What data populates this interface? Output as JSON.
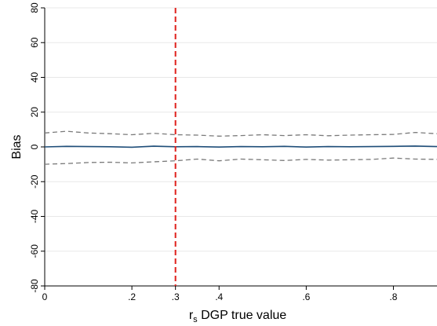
{
  "chart_data": {
    "type": "line",
    "xlabel_main": "r",
    "xlabel_sub": "s",
    "xlabel_rest": " DGP true value",
    "ylabel": "Bias",
    "xlim": [
      0,
      0.9
    ],
    "ylim": [
      -80,
      80
    ],
    "x_ticks": [
      {
        "value": 0,
        "label": "0"
      },
      {
        "value": 0.2,
        "label": ".2"
      },
      {
        "value": 0.3,
        "label": ".3"
      },
      {
        "value": 0.4,
        "label": ".4"
      },
      {
        "value": 0.6,
        "label": ".6"
      },
      {
        "value": 0.8,
        "label": ".8"
      }
    ],
    "y_ticks": [
      {
        "value": 80,
        "label": "80"
      },
      {
        "value": 60,
        "label": "60"
      },
      {
        "value": 40,
        "label": "40"
      },
      {
        "value": 20,
        "label": "20"
      },
      {
        "value": 0,
        "label": "0"
      },
      {
        "value": -20,
        "label": "-20"
      },
      {
        "value": -40,
        "label": "-40"
      },
      {
        "value": -60,
        "label": "-60"
      },
      {
        "value": -80,
        "label": "-80"
      }
    ],
    "grid": true,
    "reference_line": {
      "x": 0.3,
      "color": "#e0201b",
      "style": "dashed"
    },
    "x": [
      0,
      0.05,
      0.1,
      0.15,
      0.2,
      0.25,
      0.3,
      0.35,
      0.4,
      0.45,
      0.5,
      0.55,
      0.6,
      0.65,
      0.7,
      0.75,
      0.8,
      0.85,
      0.9
    ],
    "series": [
      {
        "role": "mean",
        "color": "#1f4e79",
        "style": "solid",
        "values": [
          0,
          0.3,
          0.2,
          0.1,
          -0.2,
          0.4,
          0.1,
          0.2,
          -0.1,
          0.2,
          0.1,
          0.3,
          -0.1,
          0.2,
          0.1,
          0.2,
          0.3,
          0.5,
          0.2
        ]
      },
      {
        "role": "upper",
        "color": "#7a7a7a",
        "style": "dashed",
        "values": [
          8.0,
          9.0,
          8.0,
          7.6,
          7.0,
          7.8,
          7.0,
          6.8,
          6.2,
          6.5,
          7.0,
          6.5,
          7.0,
          6.4,
          6.8,
          7.0,
          7.2,
          8.3,
          7.6
        ]
      },
      {
        "role": "lower",
        "color": "#7a7a7a",
        "style": "dashed",
        "values": [
          -10.0,
          -9.6,
          -9.0,
          -8.8,
          -9.2,
          -8.6,
          -8.0,
          -7.0,
          -8.0,
          -7.0,
          -7.4,
          -7.8,
          -7.2,
          -7.6,
          -7.4,
          -7.2,
          -6.4,
          -7.0,
          -7.2
        ]
      }
    ]
  }
}
